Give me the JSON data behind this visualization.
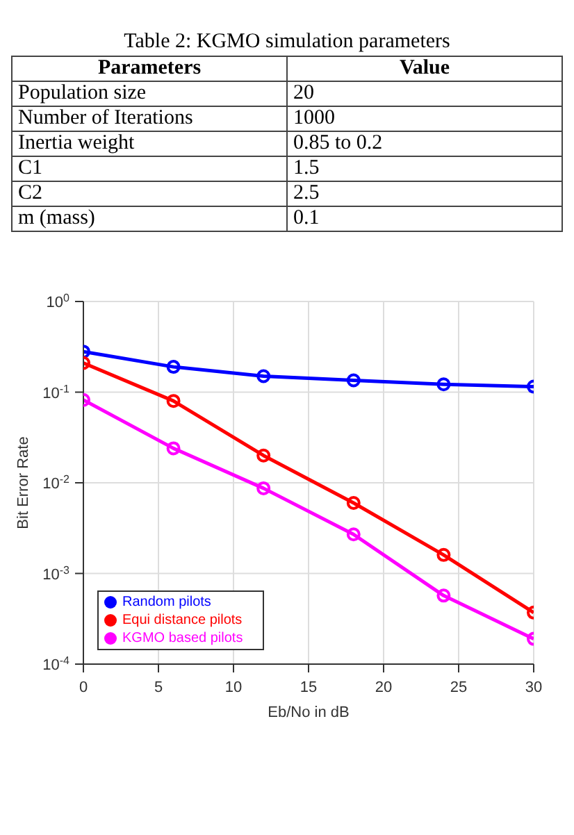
{
  "chart_data": [
    {
      "type": "other",
      "title": "Table 2: KGMO simulation parameters",
      "annotations": [
        "Parameters",
        "Value",
        "Population size",
        "20",
        "Number of Iterations",
        "1000",
        "Inertia weight",
        "0.85 to 0.2",
        "C1",
        "1.5",
        "C2",
        "2.5",
        "m (mass)",
        "0.1"
      ]
    },
    {
      "type": "line",
      "xlabel": "Eb/No in dB",
      "ylabel": "Bit Error Rate",
      "x": [
        0,
        6,
        12,
        18,
        24,
        30
      ],
      "xlim": [
        0,
        30
      ],
      "xticks": [
        0,
        5,
        10,
        15,
        20,
        25,
        30
      ],
      "log": "y",
      "ylim": [
        0.0001,
        1
      ],
      "yticks": [
        {
          "value": 0.0001,
          "label": "10$^{-4}$"
        },
        {
          "value": 0.001,
          "label": "10$^{-3}$"
        },
        {
          "value": 0.01,
          "label": "10$^{-2}$"
        },
        {
          "value": 0.1,
          "label": "10$^{-1}$"
        },
        {
          "value": 1,
          "label": "10$^{0}$"
        }
      ],
      "grid": true,
      "legend": "bottom left",
      "marker": "circle",
      "line_style": "solid",
      "series": [
        {
          "name": "Random pilots",
          "color": "#0000ff",
          "values": [
            0.28,
            0.19,
            0.15,
            0.135,
            0.122,
            0.115
          ]
        },
        {
          "name": "Equi distance pilots",
          "color": "#ff0000",
          "values": [
            0.21,
            0.08,
            0.02,
            0.006,
            0.0016,
            0.00037
          ]
        },
        {
          "name": "KGMO based pilots",
          "color": "#ff00ff",
          "values": [
            0.082,
            0.024,
            0.0087,
            0.0027,
            0.00057,
            0.00019
          ]
        }
      ]
    }
  ]
}
